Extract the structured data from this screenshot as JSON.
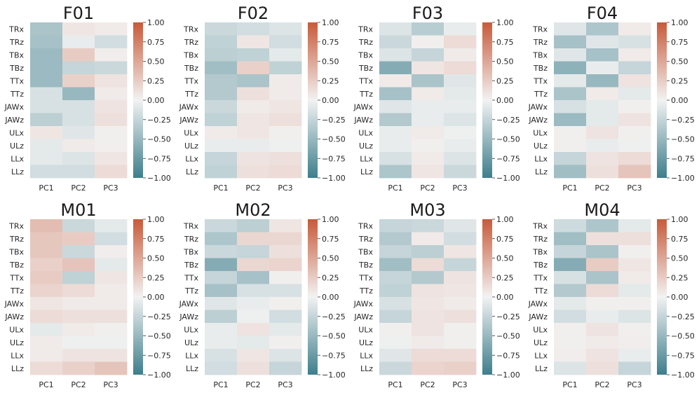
{
  "chart_data": {
    "type": "heatmap",
    "colormap": {
      "vmin": -1.0,
      "vmax": 1.0,
      "neg_color": "#3d7e8c",
      "mid_color": "#f2f2f2",
      "pos_color": "#c85a3a"
    },
    "colorbar_ticks": [
      "1.00",
      "0.75",
      "0.50",
      "0.25",
      "0.00",
      "−0.25",
      "−0.50",
      "−0.75",
      "−1.00"
    ],
    "colorbar_values": [
      1.0,
      0.75,
      0.5,
      0.25,
      0.0,
      -0.25,
      -0.5,
      -0.75,
      -1.0
    ],
    "row_labels": [
      "TRx",
      "TRz",
      "TBx",
      "TBz",
      "TTx",
      "TTz",
      "JAWx",
      "JAWz",
      "ULx",
      "ULz",
      "LLx",
      "LLz"
    ],
    "col_labels": [
      "PC1",
      "PC2",
      "PC3"
    ],
    "panels": [
      {
        "title": "F01",
        "values": [
          [
            -0.4,
            0.08,
            0.05
          ],
          [
            -0.42,
            -0.05,
            -0.18
          ],
          [
            -0.48,
            0.25,
            0.03
          ],
          [
            -0.48,
            -0.25,
            -0.22
          ],
          [
            -0.48,
            0.22,
            0.1
          ],
          [
            -0.15,
            -0.5,
            0.05
          ],
          [
            -0.15,
            -0.15,
            0.1
          ],
          [
            -0.3,
            -0.15,
            0.12
          ],
          [
            0.08,
            -0.1,
            0.02
          ],
          [
            -0.08,
            0.05,
            0.02
          ],
          [
            -0.08,
            -0.12,
            0.08
          ],
          [
            -0.18,
            -0.18,
            0.15
          ]
        ]
      },
      {
        "title": "F02",
        "values": [
          [
            -0.22,
            -0.18,
            -0.12
          ],
          [
            -0.28,
            0.08,
            -0.18
          ],
          [
            -0.3,
            -0.28,
            -0.08
          ],
          [
            -0.45,
            0.22,
            -0.28
          ],
          [
            -0.35,
            -0.4,
            0.05
          ],
          [
            -0.35,
            0.12,
            0.05
          ],
          [
            -0.22,
            0.05,
            0.08
          ],
          [
            -0.28,
            0.08,
            0.12
          ],
          [
            0.05,
            0.08,
            0.02
          ],
          [
            -0.05,
            -0.05,
            -0.02
          ],
          [
            -0.25,
            0.1,
            0.12
          ],
          [
            -0.28,
            0.12,
            0.15
          ]
        ]
      },
      {
        "title": "F03",
        "values": [
          [
            -0.12,
            -0.32,
            -0.05
          ],
          [
            -0.22,
            0.02,
            0.15
          ],
          [
            -0.12,
            -0.25,
            0.05
          ],
          [
            -0.6,
            0.08,
            0.15
          ],
          [
            0.05,
            -0.4,
            -0.1
          ],
          [
            -0.42,
            0.05,
            -0.08
          ],
          [
            -0.1,
            -0.05,
            -0.05
          ],
          [
            -0.35,
            -0.05,
            -0.12
          ],
          [
            -0.05,
            0.05,
            -0.02
          ],
          [
            -0.05,
            0.02,
            -0.05
          ],
          [
            -0.15,
            0.05,
            -0.12
          ],
          [
            -0.38,
            0.08,
            -0.22
          ]
        ]
      },
      {
        "title": "F04",
        "values": [
          [
            -0.1,
            -0.38,
            0.05
          ],
          [
            -0.42,
            -0.1,
            -0.15
          ],
          [
            -0.1,
            -0.42,
            0.05
          ],
          [
            -0.55,
            -0.05,
            -0.25
          ],
          [
            -0.08,
            -0.5,
            0.1
          ],
          [
            -0.4,
            0.05,
            -0.08
          ],
          [
            -0.15,
            -0.08,
            0.02
          ],
          [
            -0.48,
            -0.08,
            0.1
          ],
          [
            0.02,
            0.1,
            0.02
          ],
          [
            0.02,
            -0.05,
            -0.02
          ],
          [
            -0.25,
            0.1,
            0.15
          ],
          [
            -0.45,
            0.12,
            0.3
          ]
        ]
      },
      {
        "title": "M01",
        "values": [
          [
            0.35,
            -0.22,
            -0.08
          ],
          [
            0.28,
            0.25,
            -0.18
          ],
          [
            0.28,
            -0.22,
            0.03
          ],
          [
            0.22,
            0.3,
            -0.08
          ],
          [
            0.25,
            -0.28,
            0.08
          ],
          [
            0.2,
            0.15,
            0.05
          ],
          [
            0.08,
            0.05,
            0.05
          ],
          [
            0.15,
            0.12,
            0.12
          ],
          [
            -0.08,
            0.05,
            0.02
          ],
          [
            0.05,
            -0.02,
            -0.02
          ],
          [
            0.05,
            0.1,
            0.1
          ],
          [
            0.15,
            0.22,
            0.3
          ]
        ]
      },
      {
        "title": "M02",
        "values": [
          [
            -0.22,
            -0.3,
            0.08
          ],
          [
            -0.38,
            0.18,
            0.18
          ],
          [
            -0.22,
            -0.25,
            0.12
          ],
          [
            -0.6,
            0.18,
            0.2
          ],
          [
            -0.25,
            -0.42,
            0.02
          ],
          [
            -0.42,
            -0.15,
            -0.15
          ],
          [
            -0.1,
            -0.05,
            0.02
          ],
          [
            -0.3,
            -0.02,
            -0.18
          ],
          [
            -0.05,
            0.1,
            -0.08
          ],
          [
            -0.05,
            -0.08,
            0.02
          ],
          [
            -0.15,
            0.08,
            -0.12
          ],
          [
            -0.18,
            0.12,
            -0.25
          ]
        ]
      },
      {
        "title": "M03",
        "values": [
          [
            -0.25,
            -0.22,
            -0.1
          ],
          [
            -0.35,
            0.05,
            -0.18
          ],
          [
            -0.25,
            -0.3,
            0.08
          ],
          [
            -0.45,
            0.15,
            -0.25
          ],
          [
            -0.25,
            -0.35,
            0.1
          ],
          [
            -0.28,
            0.1,
            0.08
          ],
          [
            -0.15,
            0.08,
            0.05
          ],
          [
            -0.25,
            0.1,
            0.12
          ],
          [
            0.02,
            0.1,
            0.02
          ],
          [
            -0.02,
            0.05,
            0.02
          ],
          [
            -0.1,
            0.15,
            0.15
          ],
          [
            -0.22,
            0.2,
            0.22
          ]
        ]
      },
      {
        "title": "M04",
        "values": [
          [
            -0.2,
            -0.38,
            -0.08
          ],
          [
            -0.45,
            0.12,
            0.12
          ],
          [
            -0.25,
            -0.4,
            0.02
          ],
          [
            -0.6,
            0.25,
            0.08
          ],
          [
            -0.15,
            -0.4,
            0.05
          ],
          [
            -0.35,
            0.15,
            -0.08
          ],
          [
            -0.08,
            0.02,
            0.02
          ],
          [
            -0.18,
            -0.05,
            -0.12
          ],
          [
            0.02,
            0.1,
            0.02
          ],
          [
            0.02,
            0.05,
            0.03
          ],
          [
            0.03,
            0.1,
            -0.05
          ],
          [
            -0.12,
            0.12,
            -0.25
          ]
        ]
      }
    ]
  }
}
